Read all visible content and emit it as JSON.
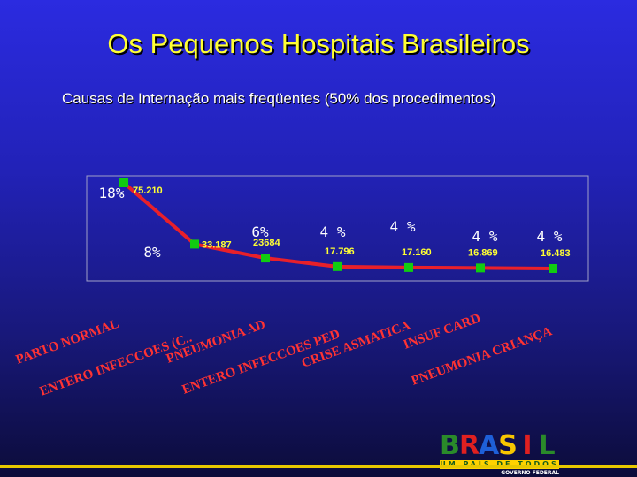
{
  "title": "Os Pequenos Hospitais Brasileiros",
  "subtitle": "Causas de Internação mais freqüentes (50% dos procedimentos)",
  "colors": {
    "line": "#e8202a",
    "marker": "#11cc11",
    "value_label": "#ffff33",
    "percent_label": "#ffffff",
    "category_label": "#ff3333",
    "background_top": "#2b2be0",
    "background_bottom": "#0c0c3a"
  },
  "chart_data": {
    "type": "line",
    "title": "",
    "xlabel": "",
    "ylabel": "",
    "grid": false,
    "legend": "none",
    "categories": [
      "PARTO NORMAL",
      "ENTERO INFECCOES (C..",
      "PNEUMONIA AD",
      "ENTERO INFECCOES PED",
      "CRISE ASMATICA",
      "INSUF CARD",
      "PNEUMONIA CRIANÇA"
    ],
    "values": [
      75210,
      33187,
      23684,
      17796,
      17160,
      16869,
      16483
    ],
    "value_labels": [
      "75.210",
      "33.187",
      "23684",
      "17.796",
      "17.160",
      "16.869",
      "16.483"
    ],
    "percent_labels": [
      "18%",
      "8%",
      "6%",
      "4 %",
      "4 %",
      "4 %",
      "4 %"
    ]
  },
  "brand": {
    "letters": [
      "B",
      "R",
      "A",
      "S",
      "I",
      "L"
    ],
    "letter_colors": [
      "#2a8a2a",
      "#e02020",
      "#1e5fd8",
      "#f7c600",
      "#e02020",
      "#2a8a2a"
    ],
    "tagline": "UM PAÍS DE TODOS",
    "government": "GOVERNO FEDERAL"
  }
}
